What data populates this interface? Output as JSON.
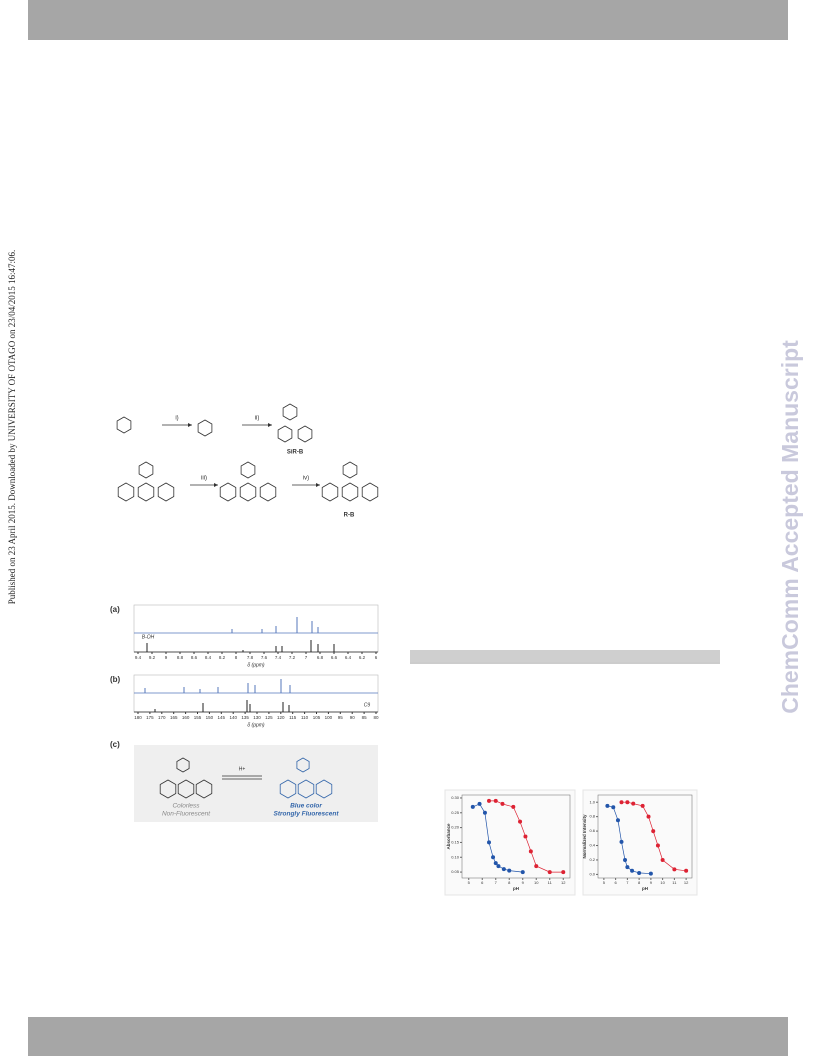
{
  "side_note": "Published on 23 April 2015. Downloaded by UNIVERSITY OF OTAGO on 23/04/2015 16:47:06.",
  "watermark": "ChemComm Accepted Manuscript",
  "scheme": {
    "steps": [
      "i)",
      "ii)",
      "iii)",
      "iv)"
    ],
    "compounds": [
      "SiR-B",
      "R-B"
    ]
  },
  "figure": {
    "panels": [
      "(a)",
      "(b)",
      "(c)"
    ],
    "nmr_a": {
      "xlabel": "δ (ppm)",
      "xlim": [
        9.4,
        6
      ],
      "xticks": [
        9.4,
        9.2,
        9.0,
        8.8,
        8.6,
        8.4,
        8.2,
        8.0,
        7.8,
        7.6,
        7.4,
        7.2,
        7.0,
        6.8,
        6.6,
        6.4,
        6.2,
        6
      ],
      "peak_label": "B-OH"
    },
    "nmr_b": {
      "xlabel": "δ (ppm)",
      "xlim": [
        180,
        80
      ],
      "xticks": [
        180,
        175,
        170,
        165,
        160,
        155,
        150,
        145,
        140,
        135,
        130,
        125,
        120,
        115,
        110,
        105,
        100,
        95,
        90,
        85,
        80
      ],
      "peak_label": "C9"
    },
    "panel_c": {
      "reagent": "H+",
      "left_state": [
        "Colorless",
        "Non-Fluorescent"
      ],
      "right_state": [
        "Blue color",
        "Strongly Fluorescent"
      ]
    }
  },
  "charts": [
    {
      "type": "scatter",
      "ylabel": "Absorbance",
      "xlabel": "pH",
      "xlim": [
        4.5,
        12.5
      ],
      "ylim": [
        0.03,
        0.31
      ],
      "xticks": [
        5,
        6,
        7,
        8,
        9,
        10,
        11,
        12
      ],
      "yticks": [
        {
          "value": 0.05,
          "label": "0.05"
        },
        {
          "value": 0.1,
          "label": "0.10"
        },
        {
          "value": 0.15,
          "label": "0.15"
        },
        {
          "value": 0.2,
          "label": "0.20"
        },
        {
          "value": 0.25,
          "label": "0.25"
        },
        {
          "value": 0.3,
          "label": "0.30"
        }
      ],
      "series": [
        {
          "color": "#2255aa",
          "x": [
            5.3,
            5.8,
            6.2,
            6.5,
            6.8,
            7.0,
            7.2,
            7.6,
            8.0,
            9.0
          ],
          "values": [
            0.27,
            0.28,
            0.25,
            0.15,
            0.1,
            0.08,
            0.07,
            0.06,
            0.055,
            0.05
          ]
        },
        {
          "color": "#dd2233",
          "x": [
            6.5,
            7.0,
            7.5,
            8.3,
            8.8,
            9.2,
            9.6,
            10.0,
            11.0,
            12.0
          ],
          "values": [
            0.29,
            0.29,
            0.28,
            0.27,
            0.22,
            0.17,
            0.12,
            0.07,
            0.05,
            0.05
          ]
        }
      ]
    },
    {
      "type": "scatter",
      "ylabel": "Normalized Intensity",
      "xlabel": "pH",
      "xlim": [
        4.5,
        12.5
      ],
      "ylim": [
        -0.05,
        1.1
      ],
      "xticks": [
        5,
        6,
        7,
        8,
        9,
        10,
        11,
        12
      ],
      "yticks": [
        {
          "value": 0,
          "label": "0.0"
        },
        0.2,
        0.4,
        0.6,
        0.8,
        {
          "value": 1,
          "label": "1.0"
        }
      ],
      "series": [
        {
          "color": "#2255aa",
          "x": [
            5.3,
            5.8,
            6.2,
            6.5,
            6.8,
            7.0,
            7.4,
            8.0,
            9.0
          ],
          "values": [
            0.95,
            0.93,
            0.75,
            0.45,
            0.2,
            0.1,
            0.05,
            0.02,
            0.01
          ]
        },
        {
          "color": "#dd2233",
          "x": [
            6.5,
            7.0,
            7.5,
            8.3,
            8.8,
            9.2,
            9.6,
            10.0,
            11.0,
            12.0
          ],
          "values": [
            1.0,
            1.0,
            0.98,
            0.95,
            0.8,
            0.6,
            0.4,
            0.2,
            0.07,
            0.05
          ]
        }
      ]
    }
  ]
}
